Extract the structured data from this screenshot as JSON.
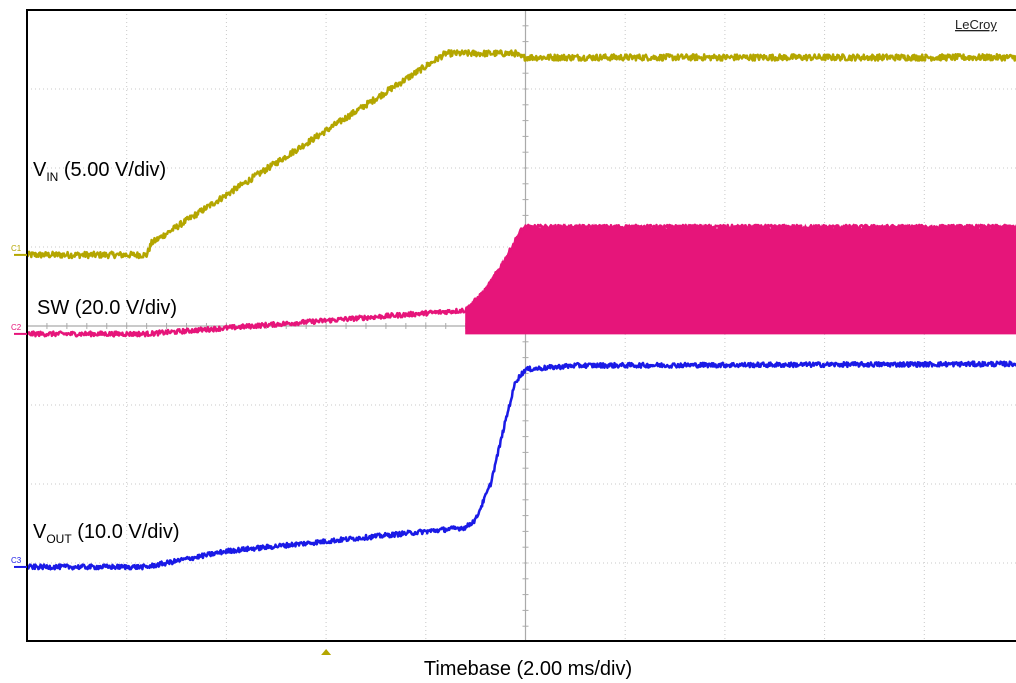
{
  "brand": "LeCroy",
  "colors": {
    "grid_major": "#aaaaaa",
    "grid_dot": "#c8c8c8",
    "trigger_marker": "#b4a600"
  },
  "chart_data": {
    "type": "line",
    "xlabel": "Timebase (2.00 ms/div)",
    "x_divisions": 10,
    "y_divisions": 8,
    "grid": true,
    "x_range_div": [
      0,
      10
    ],
    "trigger_position_div": 3.0,
    "series": [
      {
        "name": "C1",
        "label_main": "V",
        "label_sub": "IN",
        "label_rest": " (5.00 V/div)",
        "color": "#b4a600",
        "noise_amplitude_div": 0.04,
        "x": [
          0,
          1.2,
          1.25,
          4.2,
          4.3,
          4.9,
          4.95,
          10
        ],
        "y": [
          4.9,
          4.9,
          5.05,
          7.45,
          7.45,
          7.45,
          7.4,
          7.4
        ]
      },
      {
        "name": "C2",
        "label_main": "SW",
        "label_sub": "",
        "label_rest": " (20.0 V/div)",
        "color": "#e6157a",
        "noise_amplitude_div": 0.03,
        "switching_start_div": 4.4,
        "switching_low_div": 3.9,
        "x": [
          0,
          1.2,
          4.4,
          4.6,
          4.8,
          4.95,
          5.0,
          10
        ],
        "y": [
          3.9,
          3.9,
          4.2,
          4.45,
          4.85,
          5.2,
          5.25,
          5.25
        ]
      },
      {
        "name": "C3",
        "label_main": "V",
        "label_sub": "OUT",
        "label_rest": " (10.0 V/div)",
        "color": "#1a1ae6",
        "noise_amplitude_div": 0.03,
        "x": [
          0,
          1.2,
          2.0,
          4.4,
          4.5,
          4.65,
          4.8,
          4.9,
          5.0,
          5.5,
          10
        ],
        "y": [
          0.95,
          0.95,
          1.15,
          1.45,
          1.55,
          2.0,
          2.8,
          3.3,
          3.45,
          3.5,
          3.52
        ]
      }
    ]
  }
}
